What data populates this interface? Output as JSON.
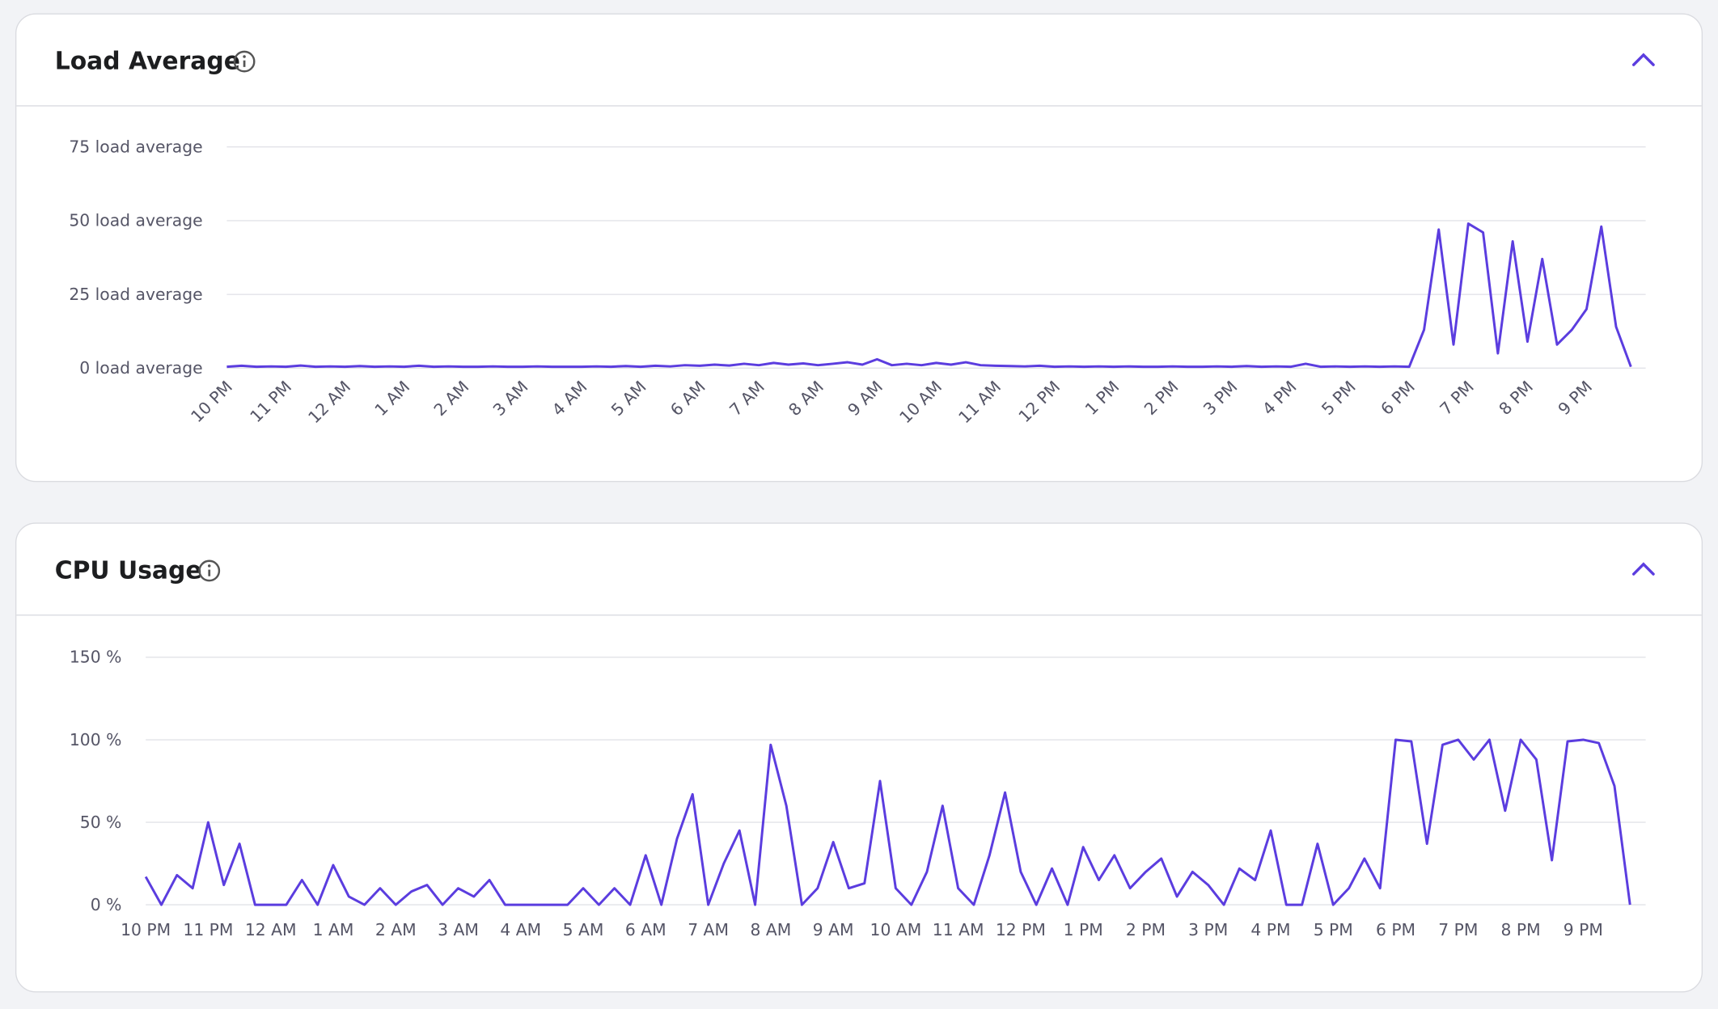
{
  "chart_data": [
    {
      "type": "line",
      "title": "Load Average",
      "color": "#5b3ddf",
      "grid": true,
      "x": [
        0,
        0.25,
        0.5,
        0.75,
        1,
        1.25,
        1.5,
        1.75,
        2,
        2.25,
        2.5,
        2.75,
        3,
        3.25,
        3.5,
        3.75,
        4,
        4.25,
        4.5,
        4.75,
        5,
        5.25,
        5.5,
        5.75,
        6,
        6.25,
        6.5,
        6.75,
        7,
        7.25,
        7.5,
        7.75,
        8,
        8.25,
        8.5,
        8.75,
        9,
        9.25,
        9.5,
        9.75,
        10,
        10.25,
        10.5,
        10.75,
        11,
        11.25,
        11.5,
        11.75,
        12,
        12.25,
        12.5,
        12.75,
        13,
        13.25,
        13.5,
        13.75,
        14,
        14.25,
        14.5,
        14.75,
        15,
        15.25,
        15.5,
        15.75,
        16,
        16.25,
        16.5,
        16.75,
        17,
        17.25,
        17.5,
        17.75,
        18,
        18.25,
        18.5,
        18.75,
        19,
        19.25,
        19.5,
        19.75,
        20,
        20.25,
        20.5,
        20.75,
        21,
        21.25,
        21.5,
        21.75,
        22,
        22.25,
        22.5,
        22.75,
        23,
        23.25,
        23.5,
        23.75
      ],
      "values": [
        0.5,
        0.8,
        0.5,
        0.6,
        0.5,
        0.9,
        0.5,
        0.6,
        0.5,
        0.7,
        0.5,
        0.6,
        0.5,
        0.8,
        0.5,
        0.6,
        0.5,
        0.5,
        0.6,
        0.5,
        0.5,
        0.6,
        0.5,
        0.5,
        0.5,
        0.6,
        0.5,
        0.7,
        0.5,
        0.8,
        0.6,
        1,
        0.8,
        1.2,
        0.9,
        1.5,
        1,
        1.8,
        1.2,
        1.6,
        1,
        1.5,
        2,
        1.2,
        3,
        1,
        1.5,
        1,
        1.8,
        1.2,
        2,
        1,
        0.8,
        0.7,
        0.6,
        0.8,
        0.5,
        0.6,
        0.5,
        0.6,
        0.5,
        0.6,
        0.5,
        0.5,
        0.6,
        0.5,
        0.5,
        0.6,
        0.5,
        0.7,
        0.5,
        0.6,
        0.5,
        1.5,
        0.5,
        0.6,
        0.5,
        0.6,
        0.5,
        0.6,
        0.5,
        13,
        47,
        8,
        49,
        46,
        5,
        43,
        9,
        37,
        8,
        13,
        20,
        48,
        14,
        0.5
      ],
      "xlim": [
        0,
        24
      ],
      "ylim": [
        0,
        75
      ],
      "yticks": [
        {
          "value": 0,
          "label": "0 load average"
        },
        {
          "value": 25,
          "label": "25 load average"
        },
        {
          "value": 50,
          "label": "50 load average"
        },
        {
          "value": 75,
          "label": "75 load average"
        }
      ],
      "xticks": [
        {
          "value": 0,
          "label": "10 PM"
        },
        {
          "value": 1,
          "label": "11 PM"
        },
        {
          "value": 2,
          "label": "12 AM"
        },
        {
          "value": 3,
          "label": "1 AM"
        },
        {
          "value": 4,
          "label": "2 AM"
        },
        {
          "value": 5,
          "label": "3 AM"
        },
        {
          "value": 6,
          "label": "4 AM"
        },
        {
          "value": 7,
          "label": "5 AM"
        },
        {
          "value": 8,
          "label": "6 AM"
        },
        {
          "value": 9,
          "label": "7 AM"
        },
        {
          "value": 10,
          "label": "8 AM"
        },
        {
          "value": 11,
          "label": "9 AM"
        },
        {
          "value": 12,
          "label": "10 AM"
        },
        {
          "value": 13,
          "label": "11 AM"
        },
        {
          "value": 14,
          "label": "12 PM"
        },
        {
          "value": 15,
          "label": "1 PM"
        },
        {
          "value": 16,
          "label": "2 PM"
        },
        {
          "value": 17,
          "label": "3 PM"
        },
        {
          "value": 18,
          "label": "4 PM"
        },
        {
          "value": 19,
          "label": "5 PM"
        },
        {
          "value": 20,
          "label": "6 PM"
        },
        {
          "value": 21,
          "label": "7 PM"
        },
        {
          "value": 22,
          "label": "8 PM"
        },
        {
          "value": 23,
          "label": "9 PM"
        }
      ]
    },
    {
      "type": "line",
      "title": "CPU Usage",
      "color": "#5b3ddf",
      "grid": true,
      "x": [
        0,
        0.25,
        0.5,
        0.75,
        1,
        1.25,
        1.5,
        1.75,
        2,
        2.25,
        2.5,
        2.75,
        3,
        3.25,
        3.5,
        3.75,
        4,
        4.25,
        4.5,
        4.75,
        5,
        5.25,
        5.5,
        5.75,
        6,
        6.25,
        6.5,
        6.75,
        7,
        7.25,
        7.5,
        7.75,
        8,
        8.25,
        8.5,
        8.75,
        9,
        9.25,
        9.5,
        9.75,
        10,
        10.25,
        10.5,
        10.75,
        11,
        11.25,
        11.5,
        11.75,
        12,
        12.25,
        12.5,
        12.75,
        13,
        13.25,
        13.5,
        13.75,
        14,
        14.25,
        14.5,
        14.75,
        15,
        15.25,
        15.5,
        15.75,
        16,
        16.25,
        16.5,
        16.75,
        17,
        17.25,
        17.5,
        17.75,
        18,
        18.25,
        18.5,
        18.75,
        19,
        19.25,
        19.5,
        19.75,
        20,
        20.25,
        20.5,
        20.75,
        21,
        21.25,
        21.5,
        21.75,
        22,
        22.25,
        22.5,
        22.75,
        23,
        23.25,
        23.5,
        23.75
      ],
      "values": [
        17,
        0,
        18,
        10,
        50,
        12,
        37,
        0,
        0,
        0,
        15,
        0,
        24,
        5,
        0,
        10,
        0,
        8,
        12,
        0,
        10,
        5,
        15,
        0,
        0,
        0,
        0,
        0,
        10,
        0,
        10,
        0,
        30,
        0,
        40,
        67,
        0,
        25,
        45,
        0,
        97,
        60,
        0,
        10,
        38,
        10,
        13,
        75,
        10,
        0,
        20,
        60,
        10,
        0,
        30,
        68,
        20,
        0,
        22,
        0,
        35,
        15,
        30,
        10,
        20,
        28,
        5,
        20,
        12,
        0,
        22,
        15,
        45,
        0,
        0,
        37,
        0,
        10,
        28,
        10,
        100,
        99,
        37,
        97,
        100,
        88,
        100,
        57,
        100,
        88,
        27,
        99,
        100,
        98,
        72,
        0
      ],
      "xlim": [
        0,
        24
      ],
      "ylim": [
        0,
        150
      ],
      "yticks": [
        {
          "value": 0,
          "label": "0 %"
        },
        {
          "value": 50,
          "label": "50 %"
        },
        {
          "value": 100,
          "label": "100 %"
        },
        {
          "value": 150,
          "label": "150 %"
        }
      ],
      "xticks": [
        {
          "value": 0,
          "label": "10 PM"
        },
        {
          "value": 1,
          "label": "11 PM"
        },
        {
          "value": 2,
          "label": "12 AM"
        },
        {
          "value": 3,
          "label": "1 AM"
        },
        {
          "value": 4,
          "label": "2 AM"
        },
        {
          "value": 5,
          "label": "3 AM"
        },
        {
          "value": 6,
          "label": "4 AM"
        },
        {
          "value": 7,
          "label": "5 AM"
        },
        {
          "value": 8,
          "label": "6 AM"
        },
        {
          "value": 9,
          "label": "7 AM"
        },
        {
          "value": 10,
          "label": "8 AM"
        },
        {
          "value": 11,
          "label": "9 AM"
        },
        {
          "value": 12,
          "label": "10 AM"
        },
        {
          "value": 13,
          "label": "11 AM"
        },
        {
          "value": 14,
          "label": "12 PM"
        },
        {
          "value": 15,
          "label": "1 PM"
        },
        {
          "value": 16,
          "label": "2 PM"
        },
        {
          "value": 17,
          "label": "3 PM"
        },
        {
          "value": 18,
          "label": "4 PM"
        },
        {
          "value": 19,
          "label": "5 PM"
        },
        {
          "value": 20,
          "label": "6 PM"
        },
        {
          "value": 21,
          "label": "7 PM"
        },
        {
          "value": 22,
          "label": "8 PM"
        },
        {
          "value": 23,
          "label": "9 PM"
        }
      ]
    }
  ]
}
